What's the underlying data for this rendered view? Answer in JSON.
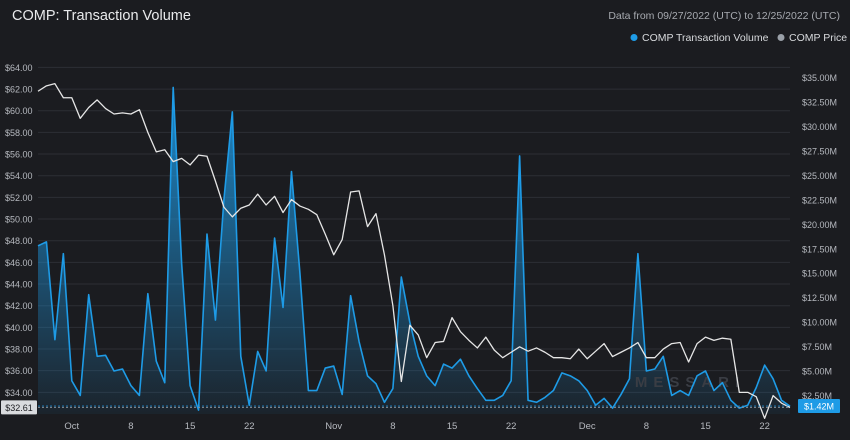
{
  "chart_data": {
    "type": "line",
    "title": "COMP: Transaction Volume",
    "subtitle": "Data from 09/27/2022 (UTC) to 12/25/2022 (UTC)",
    "watermark": "MESSARI",
    "legend_placement": "top-right",
    "grid": true,
    "colors": {
      "background": "#1b1c20",
      "volume": "#1e9be6",
      "price": "#e6e6e6",
      "price_marker": "#9aa0a8",
      "grid": "#2c2e34",
      "axis_text": "#b6b9bf",
      "title": "#e9eaec",
      "subtitle": "#a7aab0"
    },
    "x_axis": {
      "range": [
        "2022-09-27",
        "2022-12-25"
      ],
      "ticks": [
        {
          "date": "2022-10-01",
          "label": "Oct"
        },
        {
          "date": "2022-10-08",
          "label": "8"
        },
        {
          "date": "2022-10-15",
          "label": "15"
        },
        {
          "date": "2022-10-22",
          "label": "22"
        },
        {
          "date": "2022-11-01",
          "label": "Nov"
        },
        {
          "date": "2022-11-08",
          "label": "8"
        },
        {
          "date": "2022-11-15",
          "label": "15"
        },
        {
          "date": "2022-11-22",
          "label": "22"
        },
        {
          "date": "2022-12-01",
          "label": "Dec"
        },
        {
          "date": "2022-12-08",
          "label": "8"
        },
        {
          "date": "2022-12-15",
          "label": "15"
        },
        {
          "date": "2022-12-22",
          "label": "22"
        }
      ]
    },
    "y_left": {
      "range": [
        32.0,
        64.5
      ],
      "ticks": [
        {
          "value": 34,
          "label": "$34.00"
        },
        {
          "value": 36,
          "label": "$36.00"
        },
        {
          "value": 38,
          "label": "$38.00"
        },
        {
          "value": 40,
          "label": "$40.00"
        },
        {
          "value": 42,
          "label": "$42.00"
        },
        {
          "value": 44,
          "label": "$44.00"
        },
        {
          "value": 46,
          "label": "$46.00"
        },
        {
          "value": 48,
          "label": "$48.00"
        },
        {
          "value": 50,
          "label": "$50.00"
        },
        {
          "value": 52,
          "label": "$52.00"
        },
        {
          "value": 54,
          "label": "$54.00"
        },
        {
          "value": 56,
          "label": "$56.00"
        },
        {
          "value": 58,
          "label": "$58.00"
        },
        {
          "value": 60,
          "label": "$60.00"
        },
        {
          "value": 62,
          "label": "$62.00"
        },
        {
          "value": 64,
          "label": "$64.00"
        }
      ],
      "current_label": "$32.61",
      "current_value": 32.61
    },
    "y_right": {
      "range": [
        0.6,
        36.6
      ],
      "ticks": [
        {
          "value": 2.5,
          "label": "$2.50M"
        },
        {
          "value": 5,
          "label": "$5.00M"
        },
        {
          "value": 7.5,
          "label": "$7.50M"
        },
        {
          "value": 10,
          "label": "$10.00M"
        },
        {
          "value": 12.5,
          "label": "$12.50M"
        },
        {
          "value": 15,
          "label": "$15.00M"
        },
        {
          "value": 17.5,
          "label": "$17.50M"
        },
        {
          "value": 20,
          "label": "$20.00M"
        },
        {
          "value": 22.5,
          "label": "$22.50M"
        },
        {
          "value": 25,
          "label": "$25.00M"
        },
        {
          "value": 27.5,
          "label": "$27.50M"
        },
        {
          "value": 30,
          "label": "$30.00M"
        },
        {
          "value": 32.5,
          "label": "$32.50M"
        },
        {
          "value": 35,
          "label": "$35.00M"
        }
      ],
      "current_label": "$1.42M",
      "current_value": 1.42
    },
    "series": [
      {
        "name": "COMP Transaction Volume",
        "axis": "right",
        "unit": "USD millions",
        "x": [
          "2022-09-27",
          "2022-09-28",
          "2022-09-29",
          "2022-09-30",
          "2022-10-01",
          "2022-10-02",
          "2022-10-03",
          "2022-10-04",
          "2022-10-05",
          "2022-10-06",
          "2022-10-07",
          "2022-10-08",
          "2022-10-09",
          "2022-10-10",
          "2022-10-11",
          "2022-10-12",
          "2022-10-13",
          "2022-10-14",
          "2022-10-15",
          "2022-10-16",
          "2022-10-17",
          "2022-10-18",
          "2022-10-19",
          "2022-10-20",
          "2022-10-21",
          "2022-10-22",
          "2022-10-23",
          "2022-10-24",
          "2022-10-25",
          "2022-10-26",
          "2022-10-27",
          "2022-10-28",
          "2022-10-29",
          "2022-10-30",
          "2022-10-31",
          "2022-11-01",
          "2022-11-02",
          "2022-11-03",
          "2022-11-04",
          "2022-11-05",
          "2022-11-06",
          "2022-11-07",
          "2022-11-08",
          "2022-11-09",
          "2022-11-10",
          "2022-11-11",
          "2022-11-12",
          "2022-11-13",
          "2022-11-14",
          "2022-11-15",
          "2022-11-16",
          "2022-11-17",
          "2022-11-18",
          "2022-11-19",
          "2022-11-20",
          "2022-11-21",
          "2022-11-22",
          "2022-11-23",
          "2022-11-24",
          "2022-11-25",
          "2022-11-26",
          "2022-11-27",
          "2022-11-28",
          "2022-11-29",
          "2022-11-30",
          "2022-12-01",
          "2022-12-02",
          "2022-12-03",
          "2022-12-04",
          "2022-12-05",
          "2022-12-06",
          "2022-12-07",
          "2022-12-08",
          "2022-12-09",
          "2022-12-10",
          "2022-12-11",
          "2022-12-12",
          "2022-12-13",
          "2022-12-14",
          "2022-12-15",
          "2022-12-16",
          "2022-12-17",
          "2022-12-18",
          "2022-12-19",
          "2022-12-20",
          "2022-12-21",
          "2022-12-22",
          "2022-12-23",
          "2022-12-24",
          "2022-12-25"
        ],
        "values": [
          17.8,
          18.2,
          8.2,
          17.0,
          4.0,
          2.5,
          12.8,
          6.5,
          6.6,
          5.0,
          5.2,
          3.5,
          2.5,
          12.9,
          6.0,
          3.8,
          34.0,
          16.0,
          3.5,
          1.0,
          19.0,
          10.2,
          22.5,
          31.5,
          6.5,
          1.5,
          7.0,
          5.0,
          18.6,
          11.5,
          25.4,
          15.0,
          3.0,
          3.0,
          5.3,
          5.5,
          2.6,
          12.7,
          8.0,
          4.5,
          3.7,
          1.8,
          3.2,
          14.6,
          10.0,
          6.5,
          4.5,
          3.5,
          5.7,
          5.3,
          6.2,
          4.5,
          3.2,
          2.0,
          2.0,
          2.5,
          4.0,
          27.0,
          2.0,
          1.8,
          2.3,
          3.0,
          4.8,
          4.5,
          4.0,
          3.0,
          1.5,
          2.2,
          1.2,
          2.6,
          4.2,
          17.0,
          5.0,
          5.2,
          6.5,
          2.5,
          3.0,
          2.5,
          4.5,
          5.0,
          3.0,
          3.8,
          2.0,
          1.2,
          1.5,
          3.3,
          5.6,
          4.2,
          2.0,
          1.4
        ]
      },
      {
        "name": "COMP Price",
        "axis": "left",
        "unit": "USD",
        "x": [
          "2022-09-27",
          "2022-09-28",
          "2022-09-29",
          "2022-09-30",
          "2022-10-01",
          "2022-10-02",
          "2022-10-03",
          "2022-10-04",
          "2022-10-05",
          "2022-10-06",
          "2022-10-07",
          "2022-10-08",
          "2022-10-09",
          "2022-10-10",
          "2022-10-11",
          "2022-10-12",
          "2022-10-13",
          "2022-10-14",
          "2022-10-15",
          "2022-10-16",
          "2022-10-17",
          "2022-10-18",
          "2022-10-19",
          "2022-10-20",
          "2022-10-21",
          "2022-10-22",
          "2022-10-23",
          "2022-10-24",
          "2022-10-25",
          "2022-10-26",
          "2022-10-27",
          "2022-10-28",
          "2022-10-29",
          "2022-10-30",
          "2022-10-31",
          "2022-11-01",
          "2022-11-02",
          "2022-11-03",
          "2022-11-04",
          "2022-11-05",
          "2022-11-06",
          "2022-11-07",
          "2022-11-08",
          "2022-11-09",
          "2022-11-10",
          "2022-11-11",
          "2022-11-12",
          "2022-11-13",
          "2022-11-14",
          "2022-11-15",
          "2022-11-16",
          "2022-11-17",
          "2022-11-18",
          "2022-11-19",
          "2022-11-20",
          "2022-11-21",
          "2022-11-22",
          "2022-11-23",
          "2022-11-24",
          "2022-11-25",
          "2022-11-26",
          "2022-11-27",
          "2022-11-28",
          "2022-11-29",
          "2022-11-30",
          "2022-12-01",
          "2022-12-02",
          "2022-12-03",
          "2022-12-04",
          "2022-12-05",
          "2022-12-06",
          "2022-12-07",
          "2022-12-08",
          "2022-12-09",
          "2022-12-10",
          "2022-12-11",
          "2022-12-12",
          "2022-12-13",
          "2022-12-14",
          "2022-12-15",
          "2022-12-16",
          "2022-12-17",
          "2022-12-18",
          "2022-12-19",
          "2022-12-20",
          "2022-12-21",
          "2022-12-22",
          "2022-12-23",
          "2022-12-24",
          "2022-12-25"
        ],
        "values": [
          61.8,
          62.3,
          62.5,
          61.2,
          61.2,
          59.3,
          60.3,
          61.0,
          60.2,
          59.7,
          59.8,
          59.7,
          60.1,
          58.0,
          56.2,
          56.4,
          55.3,
          55.6,
          55.0,
          55.9,
          55.8,
          53.5,
          51.1,
          50.2,
          51.0,
          51.3,
          52.3,
          51.3,
          52.1,
          50.6,
          51.8,
          51.2,
          50.9,
          50.4,
          48.6,
          46.7,
          48.1,
          52.5,
          52.6,
          49.3,
          50.5,
          46.7,
          42.0,
          35.0,
          40.2,
          39.3,
          37.2,
          38.6,
          38.7,
          40.9,
          39.6,
          38.8,
          38.1,
          39.1,
          37.9,
          37.2,
          37.7,
          38.2,
          37.8,
          38.1,
          37.7,
          37.2,
          37.2,
          37.1,
          38.0,
          37.1,
          37.8,
          38.5,
          37.3,
          37.7,
          38.1,
          38.6,
          37.2,
          37.2,
          38.0,
          38.5,
          38.6,
          36.8,
          38.5,
          39.1,
          38.8,
          39.0,
          38.9,
          34.0,
          34.0,
          33.6,
          31.6,
          33.7,
          33.0,
          32.6
        ]
      }
    ]
  }
}
